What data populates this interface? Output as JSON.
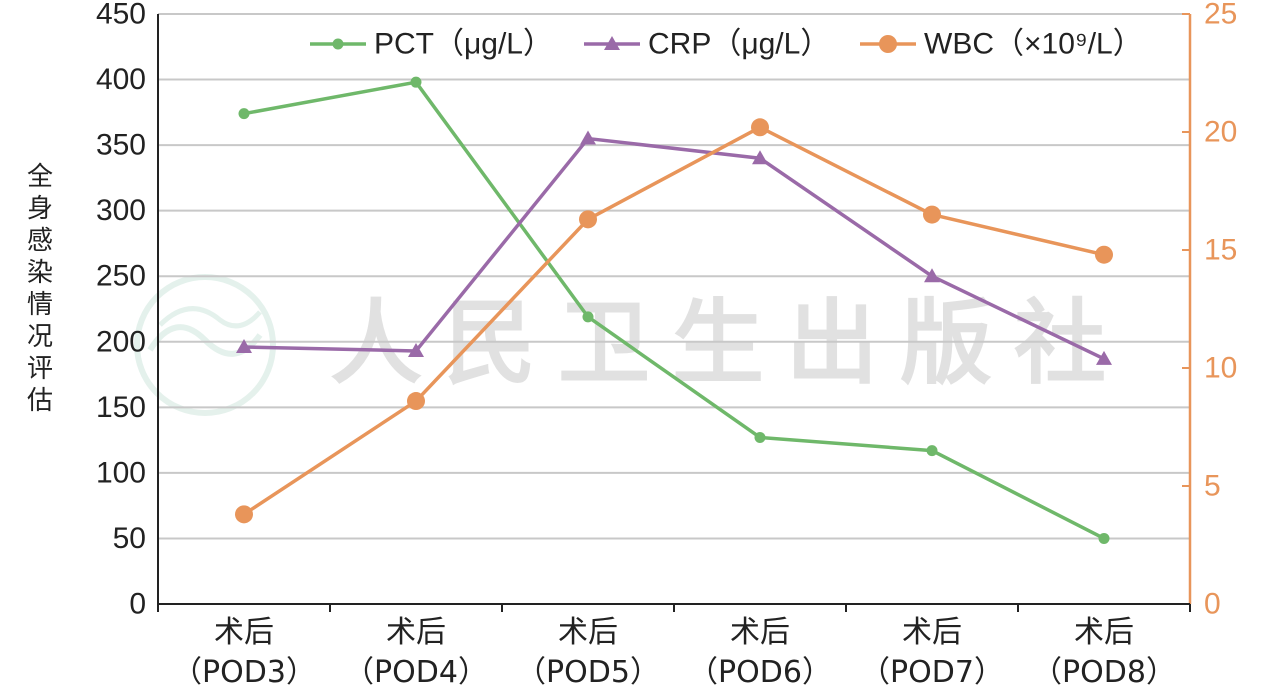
{
  "chart_data": {
    "type": "line",
    "categories": [
      [
        "术后",
        "（POD3）"
      ],
      [
        "术后",
        "（POD4）"
      ],
      [
        "术后",
        "（POD5）"
      ],
      [
        "术后",
        "（POD6）"
      ],
      [
        "术后",
        "（POD7）"
      ],
      [
        "术后",
        "（POD8）"
      ]
    ],
    "ylabel": "全身感染情况评估",
    "y_left": {
      "min": 0,
      "max": 450,
      "ticks": [
        "0",
        "50",
        "100",
        "150",
        "200",
        "250",
        "300",
        "350",
        "400",
        "450"
      ]
    },
    "y_right": {
      "min": 0,
      "max": 25,
      "ticks": [
        "0",
        "5",
        "10",
        "15",
        "20",
        "25"
      ],
      "color": "#e8955a"
    },
    "grid": true,
    "legend_position": "top-right",
    "series": [
      {
        "name": "PCT（μg/L）",
        "axis": "left",
        "color": "#6fb86a",
        "marker": "circle-small",
        "values": [
          374,
          398,
          219,
          127,
          117,
          50
        ]
      },
      {
        "name": "CRP（μg/L）",
        "axis": "left",
        "color": "#9a6aa8",
        "marker": "triangle",
        "values": [
          196,
          193,
          355,
          340,
          250,
          187
        ]
      },
      {
        "name": "WBC（×10⁹/L）",
        "axis": "right",
        "color": "#e8955a",
        "marker": "circle-large",
        "values": [
          3.8,
          8.6,
          16.3,
          20.2,
          16.5,
          14.8
        ]
      }
    ],
    "watermark": "人民卫生出版社"
  }
}
